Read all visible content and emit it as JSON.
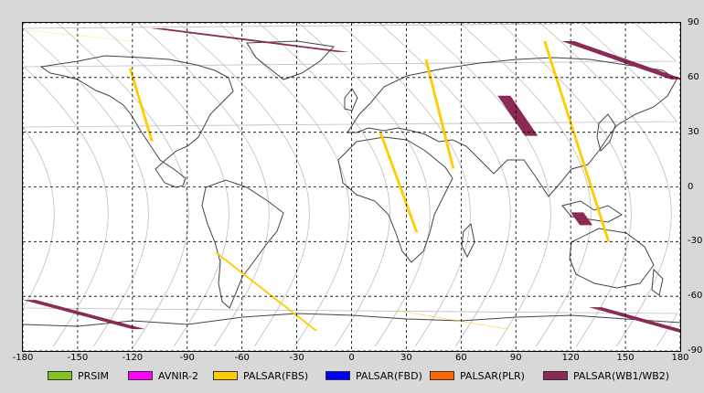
{
  "map": {
    "lon_ticks": [
      "-180",
      "-150",
      "-120",
      "-90",
      "-60",
      "-30",
      "0",
      "30",
      "60",
      "90",
      "120",
      "150",
      "180"
    ],
    "lat_ticks": [
      "90",
      "60",
      "30",
      "0",
      "-30",
      "-60",
      "-90"
    ],
    "lon_range": [
      -180,
      180
    ],
    "lat_range": [
      -90,
      90
    ],
    "grid": "dashed",
    "colors": {
      "background": "#ffffff",
      "coastline": "#444444",
      "orbit_track": "#bdbdbd",
      "grid": "#000000"
    }
  },
  "legend": [
    {
      "label": "PRSIM",
      "color": "#7fc31c"
    },
    {
      "label": "AVNIR-2",
      "color": "#ff00ff"
    },
    {
      "label": "PALSAR(FBS)",
      "color": "#ffcc00"
    },
    {
      "label": "PALSAR(FBD)",
      "color": "#0000ff"
    },
    {
      "label": "PALSAR(PLR)",
      "color": "#ff6600"
    },
    {
      "label": "PALSAR(WB1/WB2)",
      "color": "#8b2a55"
    }
  ],
  "swaths": [
    {
      "mode": "PALSAR(WB1/WB2)",
      "lon": [
        -110,
        -8
      ],
      "lat": [
        87,
        74
      ]
    },
    {
      "mode": "PALSAR(WB1/WB2)",
      "lon": [
        115,
        175
      ],
      "lat": [
        80,
        59
      ]
    },
    {
      "mode": "PALSAR(WB1/WB2)",
      "lon": [
        -180,
        -120
      ],
      "lat": [
        -62,
        -78
      ]
    },
    {
      "mode": "PALSAR(WB1/WB2)",
      "lon": [
        130,
        180
      ],
      "lat": [
        -66,
        -80
      ]
    },
    {
      "mode": "PALSAR(WB1/WB2)",
      "lon": [
        80,
        95
      ],
      "lat": [
        50,
        28
      ]
    },
    {
      "mode": "PALSAR(WB1/WB2)",
      "lon": [
        120,
        125
      ],
      "lat": [
        -14,
        -21
      ]
    },
    {
      "mode": "PALSAR(FBS)",
      "lon": [
        -180,
        -120
      ],
      "lat": [
        86,
        80
      ]
    },
    {
      "mode": "PALSAR(FBS)",
      "lon": [
        -122,
        -110
      ],
      "lat": [
        65,
        25
      ]
    },
    {
      "mode": "PALSAR(FBS)",
      "lon": [
        -75,
        -20
      ],
      "lat": [
        -36,
        -79
      ]
    },
    {
      "mode": "PALSAR(FBS)",
      "lon": [
        15,
        35
      ],
      "lat": [
        30,
        -25
      ]
    },
    {
      "mode": "PALSAR(FBS)",
      "lon": [
        40,
        55
      ],
      "lat": [
        70,
        10
      ]
    },
    {
      "mode": "PALSAR(FBS)",
      "lon": [
        105,
        140
      ],
      "lat": [
        80,
        -30
      ]
    },
    {
      "mode": "PALSAR(FBS)",
      "lon": [
        25,
        85
      ],
      "lat": [
        -68,
        -78
      ]
    }
  ]
}
